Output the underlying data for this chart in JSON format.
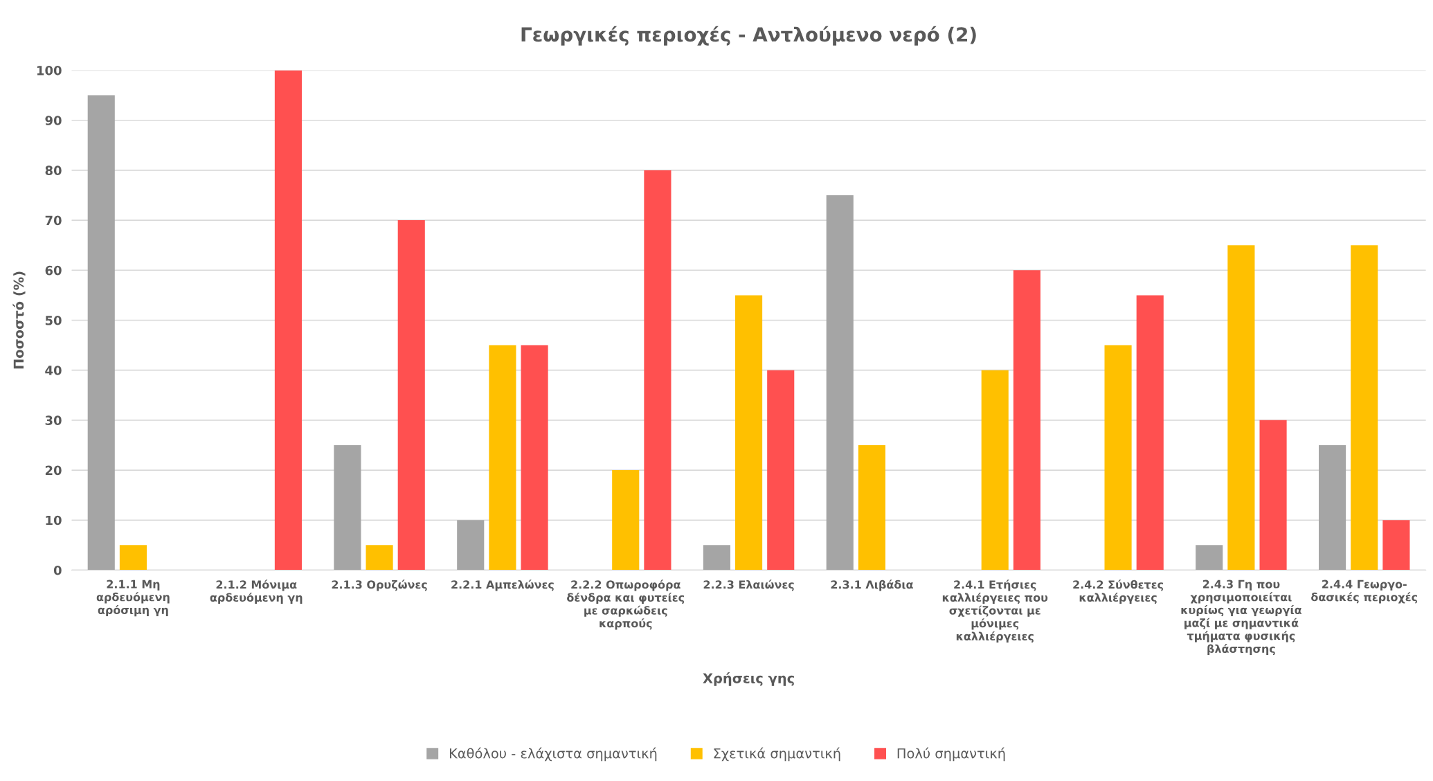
{
  "chart_data": {
    "type": "bar",
    "title": "Γεωργικές περιοχές - Αντλούμενο νερό (2)",
    "xlabel": "Χρήσεις γης",
    "ylabel": "Ποσοστό (%)",
    "categories": [
      "2.1.1 Μη\nαρδευόμενη\nαρόσιμη γη",
      "2.1.2 Μόνιμα\nαρδευόμενη γη",
      "2.1.3 Ορυζώνες",
      "2.2.1 Αμπελώνες",
      "2.2.2 Οπωροφόρα\nδένδρα και φυτείες\nμε σαρκώδεις\nκαρπούς",
      "2.2.3 Ελαιώνες",
      "2.3.1 Λιβάδια",
      "2.4.1 Ετήσιες\nκαλλιέργειες που\nσχετίζονται με\nμόνιμες\nκαλλιέργειες",
      "2.4.2 Σύνθετες\nκαλλιέργειες",
      "2.4.3 Γη που\nχρησιμοποιείται\nκυρίως για γεωργία\nμαζί με σημαντικά\nτμήματα φυσικής\nβλάστησης",
      "2.4.4 Γεωργο-\nδασικές περιοχές"
    ],
    "series": [
      {
        "name": "Καθόλου - ελάχιστα σημαντική",
        "color": "#a5a5a5",
        "values": [
          95,
          0,
          25,
          10,
          0,
          5,
          75,
          0,
          0,
          5,
          25
        ]
      },
      {
        "name": "Σχετικά σημαντική",
        "color": "#ffc000",
        "values": [
          5,
          0,
          5,
          45,
          20,
          55,
          25,
          40,
          45,
          65,
          65
        ]
      },
      {
        "name": "Πολύ σημαντική",
        "color": "#ff5050",
        "values": [
          0,
          100,
          70,
          45,
          80,
          40,
          0,
          60,
          55,
          30,
          10
        ]
      }
    ],
    "ylim": [
      0,
      100
    ],
    "yticks": [
      0,
      10,
      20,
      30,
      40,
      50,
      60,
      70,
      80,
      90,
      100
    ],
    "grid": "y",
    "legend": "bottom"
  }
}
